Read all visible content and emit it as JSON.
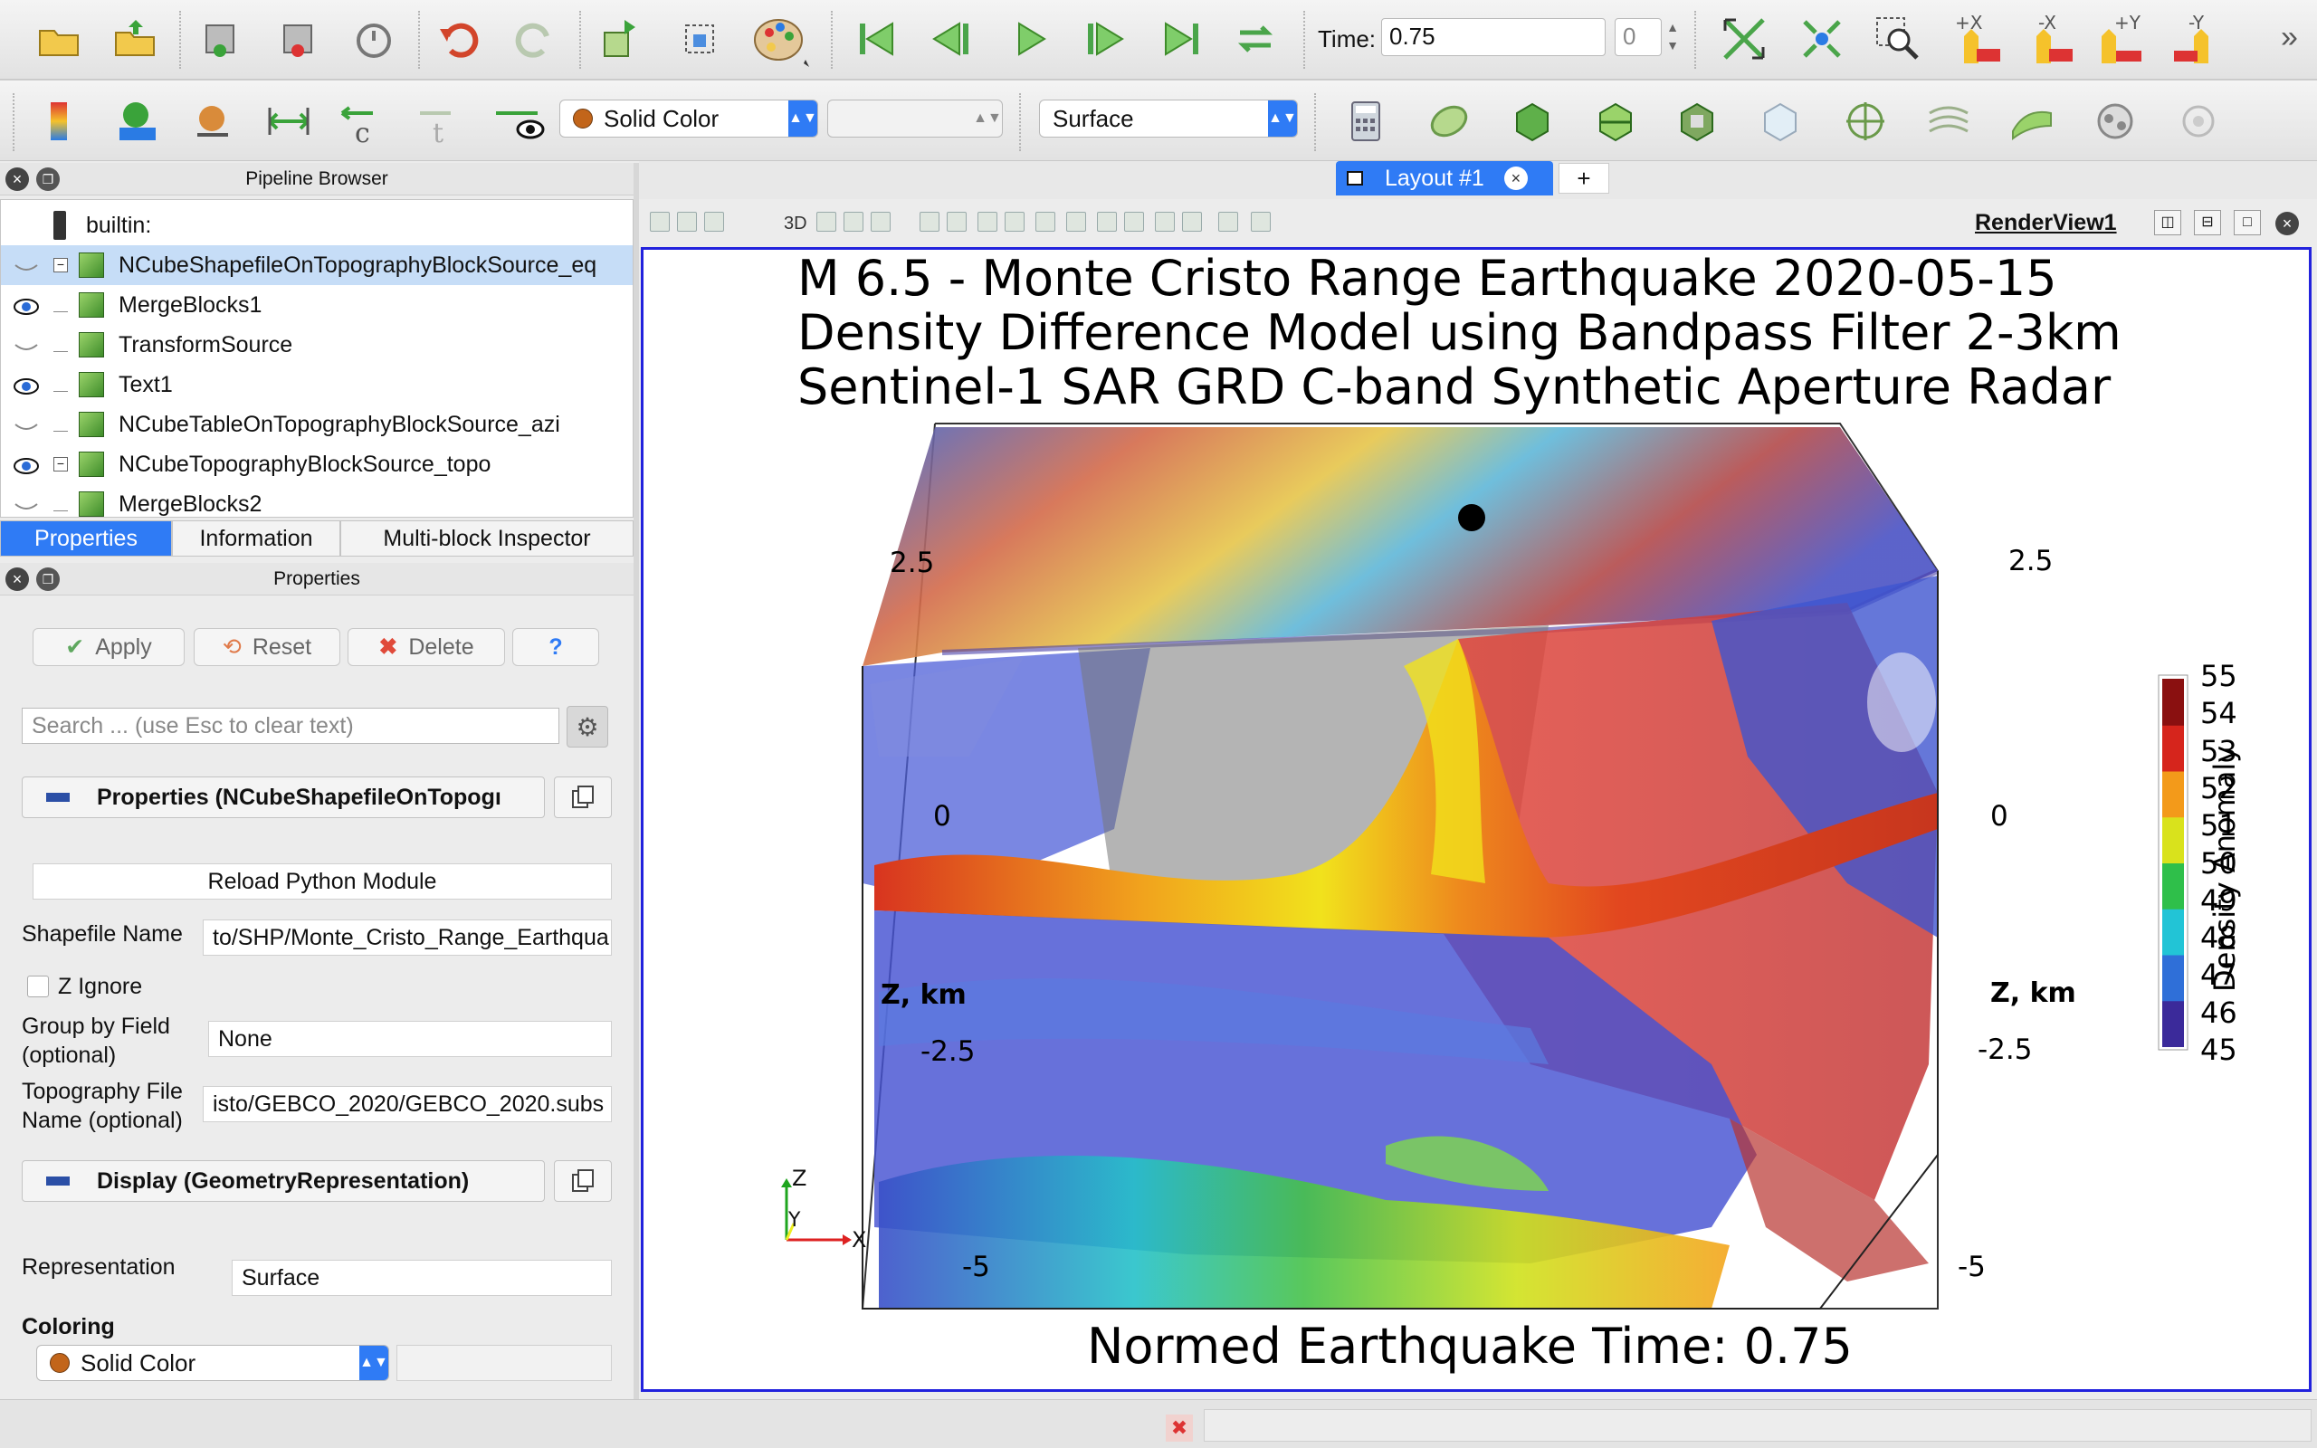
{
  "toolbar": {
    "time_label": "Time:",
    "time_value": "0.75",
    "time_index": "0",
    "color_mode": "Solid Color",
    "representation": "Surface",
    "camera_buttons": [
      "+X",
      "-X",
      "+Y",
      "-Y"
    ]
  },
  "pipeline": {
    "title": "Pipeline Browser",
    "root": "builtin:",
    "items": [
      {
        "label": "NCubeShapefileOnTopographyBlockSource_eq",
        "visible": false,
        "selected": true,
        "expander": true
      },
      {
        "label": "MergeBlocks1",
        "visible": true
      },
      {
        "label": "TransformSource",
        "visible": false
      },
      {
        "label": "Text1",
        "visible": true
      },
      {
        "label": "NCubeTableOnTopographyBlockSource_azi",
        "visible": false
      },
      {
        "label": "NCubeTopographyBlockSource_topo",
        "visible": true,
        "expander": true
      },
      {
        "label": "MergeBlocks2",
        "visible": false
      }
    ]
  },
  "tabs": [
    "Properties",
    "Information",
    "Multi-block Inspector"
  ],
  "properties": {
    "title": "Properties",
    "apply": "Apply",
    "reset": "Reset",
    "delete": "Delete",
    "help": "?",
    "search_placeholder": "Search ... (use Esc to clear text)",
    "section_props": "Properties (NCubeShapefileOnTopogı",
    "reload": "Reload Python Module",
    "shapefile_label": "Shapefile Name",
    "shapefile_value": "to/SHP/Monte_Cristo_Range_Earthqua",
    "z_ignore": "Z Ignore",
    "group_label_1": "Group by Field",
    "group_label_2": "(optional)",
    "group_value": "None",
    "topo_label_1": "Topography File",
    "topo_label_2": "Name (optional)",
    "topo_value": "isto/GEBCO_2020/GEBCO_2020.subs",
    "section_display": "Display (GeometryRepresentation)",
    "representation_label": "Representation",
    "representation_value": "Surface",
    "coloring_label": "Coloring",
    "coloring_value": "Solid Color"
  },
  "layout": {
    "tab_label": "Layout #1",
    "add": "+",
    "view_name": "RenderView1",
    "mode_3d": "3D"
  },
  "render": {
    "title_lines": [
      "M 6.5 - Monte Cristo Range Earthquake 2020-05-15",
      "Density Difference Model using Bandpass Filter 2-3km",
      "Sentinel-1 SAR GRD C-band Synthetic Aperture Radar"
    ],
    "footer": "Normed Earthquake Time: 0.75",
    "axis_label_left": "Z, km",
    "axis_label_right": "Z, km",
    "ticks_left": [
      "2.5",
      "0",
      "-2.5",
      "-5"
    ],
    "ticks_right": [
      "2.5",
      "0",
      "-2.5",
      "-5"
    ],
    "orient_labels": [
      "Z",
      "Y",
      "X"
    ]
  },
  "colorbar": {
    "title": "Density Anomaly",
    "labels": [
      "55",
      "54",
      "53",
      "52",
      "51",
      "50",
      "49",
      "48",
      "47",
      "46",
      "45"
    ],
    "colors": [
      "#3b2a9a",
      "#2f6fd8",
      "#22c4d6",
      "#2fbf4a",
      "#d9e21c",
      "#f39a1a",
      "#d6251c",
      "#8a1010"
    ]
  }
}
